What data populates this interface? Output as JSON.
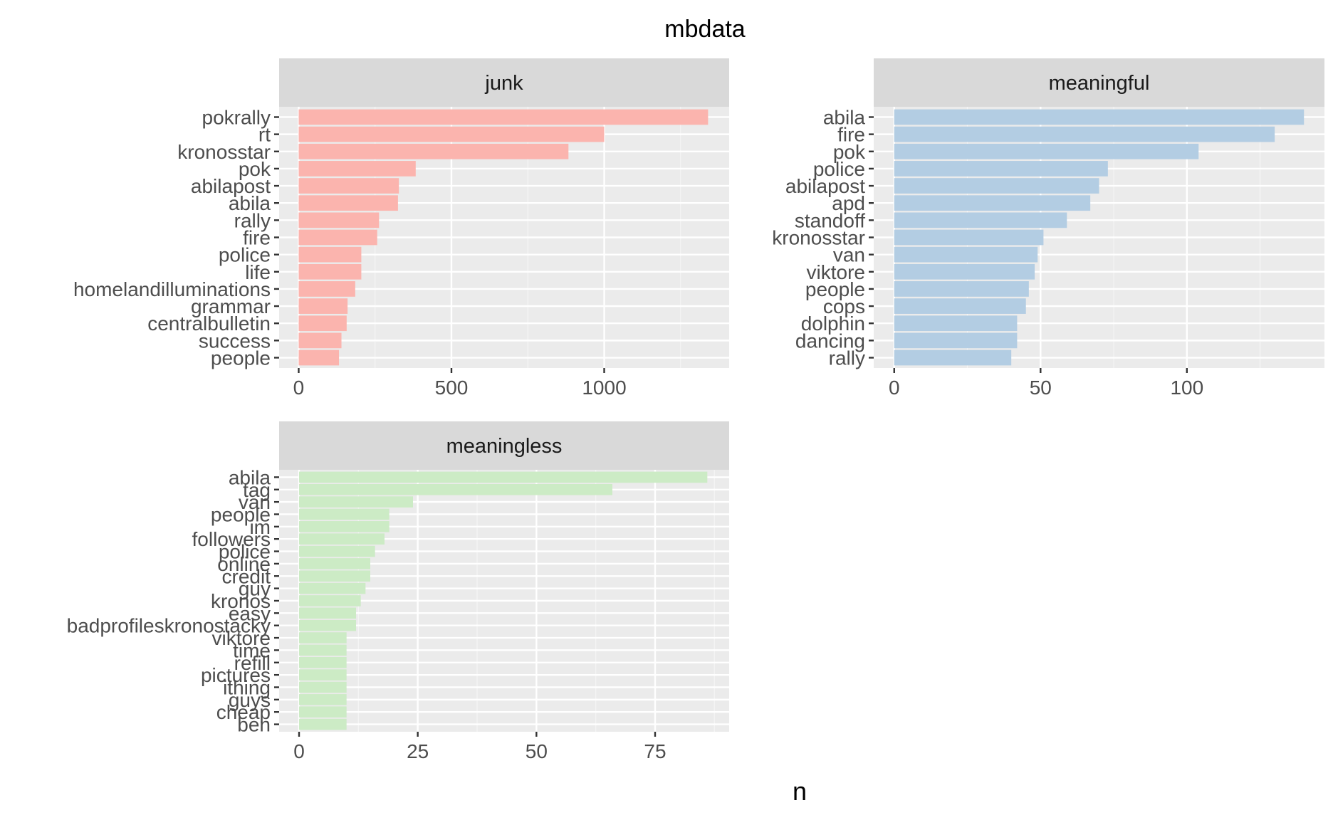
{
  "chart_data": {
    "type": "bar",
    "orientation": "horizontal",
    "title": "mbdata",
    "xlabel": "n",
    "ylabel": "",
    "facet_scales": "free",
    "grid": true,
    "legend": "none",
    "panels": [
      {
        "name": "junk",
        "color": "#fbb4ae",
        "xlim": [
          -64,
          1409
        ],
        "xticks": [
          0,
          500,
          1000
        ],
        "categories": [
          "pokrally",
          "rt",
          "kronosstar",
          "pok",
          "abilapost",
          "abila",
          "rally",
          "fire",
          "police",
          "life",
          "homelandilluminations",
          "grammar",
          "centralbulletin",
          "success",
          "people"
        ],
        "values": [
          1340,
          1000,
          883,
          383,
          328,
          325,
          263,
          257,
          205,
          205,
          185,
          160,
          157,
          140,
          132
        ]
      },
      {
        "name": "meaningful",
        "color": "#b3cde3",
        "xlim": [
          -7,
          147
        ],
        "xticks": [
          0,
          50,
          100
        ],
        "categories": [
          "abila",
          "fire",
          "pok",
          "police",
          "abilapost",
          "apd",
          "standoff",
          "kronosstar",
          "van",
          "viktore",
          "people",
          "cops",
          "dolphin",
          "dancing",
          "rally"
        ],
        "values": [
          140,
          130,
          104,
          73,
          70,
          67,
          59,
          51,
          49,
          48,
          46,
          45,
          42,
          42,
          40
        ]
      },
      {
        "name": "meaningless",
        "color": "#ccebc5",
        "xlim": [
          -4.2,
          90.6
        ],
        "xticks": [
          0,
          25,
          50,
          75
        ],
        "categories": [
          "abila",
          "tag",
          "van",
          "people",
          "im",
          "followers",
          "police",
          "online",
          "credit",
          "guy",
          "kronos",
          "easy",
          "badprofileskronostacky",
          "viktore",
          "time",
          "refill",
          "pictures",
          "ithing",
          "guys",
          "cheap",
          "ben"
        ],
        "values": [
          86,
          66,
          24,
          19,
          19,
          18,
          16,
          15,
          15,
          14,
          13,
          12,
          12,
          10,
          10,
          10,
          10,
          10,
          10,
          10,
          10
        ]
      }
    ]
  }
}
